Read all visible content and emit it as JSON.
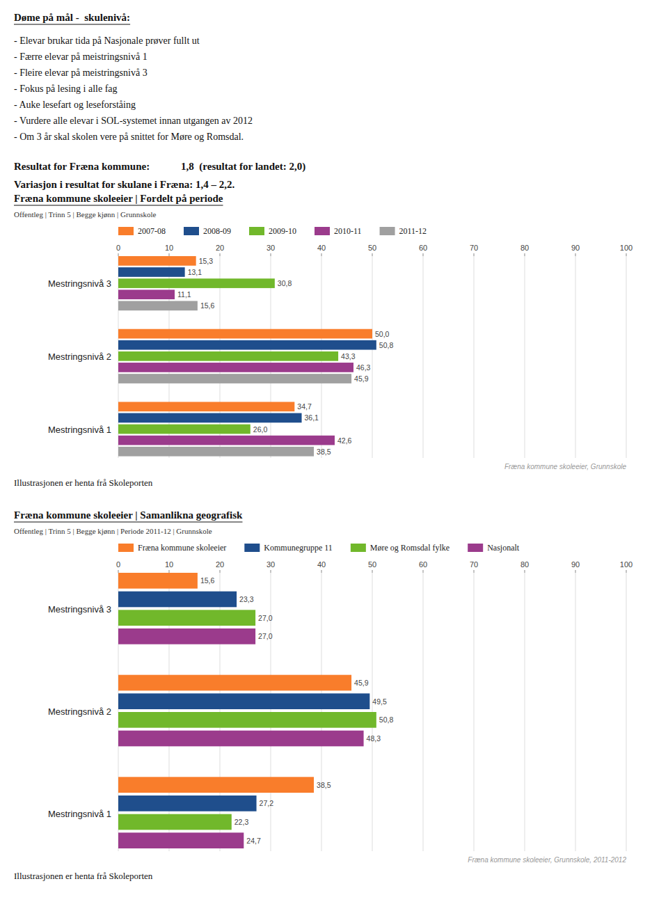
{
  "chart_data": [
    {
      "type": "bar",
      "orientation": "horizontal",
      "title": "Fræna kommune skoleeier | Fordelt på periode",
      "subtitle": "Offentleg | Trinn 5 | Begge kjønn | Grunnskole",
      "categories": [
        "Mestringsnivå 1",
        "Mestringsnivå 2",
        "Mestringsnivå 3"
      ],
      "series": [
        {
          "name": "2007-08",
          "color": "#F97D2B",
          "values": [
            34.7,
            50.0,
            15.3
          ],
          "value_labels": [
            "34,7",
            "50,0",
            "15,3"
          ]
        },
        {
          "name": "2008-09",
          "color": "#1F4E8C",
          "values": [
            36.1,
            50.8,
            13.1
          ],
          "value_labels": [
            "36,1",
            "50,8",
            "13,1"
          ]
        },
        {
          "name": "2009-10",
          "color": "#71B82B",
          "values": [
            26.0,
            43.3,
            30.8
          ],
          "value_labels": [
            "26,0",
            "43,3",
            "30,8"
          ]
        },
        {
          "name": "2010-11",
          "color": "#9B3B8C",
          "values": [
            42.6,
            46.3,
            11.1
          ],
          "value_labels": [
            "42,6",
            "46,3",
            "11,1"
          ]
        },
        {
          "name": "2011-12",
          "color": "#A0A0A0",
          "values": [
            38.5,
            45.9,
            15.6
          ],
          "value_labels": [
            "38,5",
            "45,9",
            "15,6"
          ]
        }
      ],
      "xlim": [
        0,
        100
      ],
      "xticks": [
        0,
        10,
        20,
        30,
        40,
        50,
        60,
        70,
        80,
        90,
        100
      ],
      "grid": true,
      "data_labels": true,
      "annotations": [
        "Døme på mål -  skulenivå:",
        "- Elevar brukar tida på Nasjonale prøver fullt ut",
        "- Færre elevar på meistringsnivå 1",
        "- Fleire elevar på meistringsnivå 3",
        "- Fokus på lesing i alle fag",
        "- Auke lesefart og leseforståing",
        "- Vurdere alle elevar i SOL-systemet innan utgangen av 2012",
        "- Om 3 år skal skolen vere på snittet for Møre og Romsdal.",
        "Resultat for Fræna kommune:            1,8  (resultat for landet: 2,0)",
        "Variasjon i resultat for skulane i Fræna: 1,4 – 2,2.",
        "Fræna kommune skoleeier, Grunnskole",
        "Illustrasjonen er henta frå Skoleporten"
      ]
    },
    {
      "type": "bar",
      "orientation": "horizontal",
      "title": "Fræna kommune skoleeier | Samanlikna geografisk",
      "subtitle": "Offentleg | Trinn 5 | Begge kjønn | Periode 2011-12 | Grunnskole",
      "categories": [
        "Mestringsnivå 1",
        "Mestringsnivå 2",
        "Mestringsnivå 3"
      ],
      "series": [
        {
          "name": "Fræna kommune skoleeier",
          "color": "#F97D2B",
          "values": [
            38.5,
            45.9,
            15.6
          ],
          "value_labels": [
            "38,5",
            "45,9",
            "15,6"
          ]
        },
        {
          "name": "Kommunegruppe 11",
          "color": "#1F4E8C",
          "values": [
            27.2,
            49.5,
            23.3
          ],
          "value_labels": [
            "27,2",
            "49,5",
            "23,3"
          ]
        },
        {
          "name": "Møre og Romsdal fylke",
          "color": "#71B82B",
          "values": [
            22.3,
            50.8,
            27.0
          ],
          "value_labels": [
            "22,3",
            "50,8",
            "27,0"
          ]
        },
        {
          "name": "Nasjonalt",
          "color": "#9B3B8C",
          "values": [
            24.7,
            48.3,
            27.0
          ],
          "value_labels": [
            "24,7",
            "48,3",
            "27,0"
          ]
        }
      ],
      "xlim": [
        0,
        100
      ],
      "xticks": [
        0,
        10,
        20,
        30,
        40,
        50,
        60,
        70,
        80,
        90,
        100
      ],
      "grid": true,
      "data_labels": true,
      "annotations": [
        "Fræna kommune skoleeier, Grunnskole, 2011-2012",
        "Illustrasjonen er henta frå Skoleporten"
      ]
    }
  ]
}
